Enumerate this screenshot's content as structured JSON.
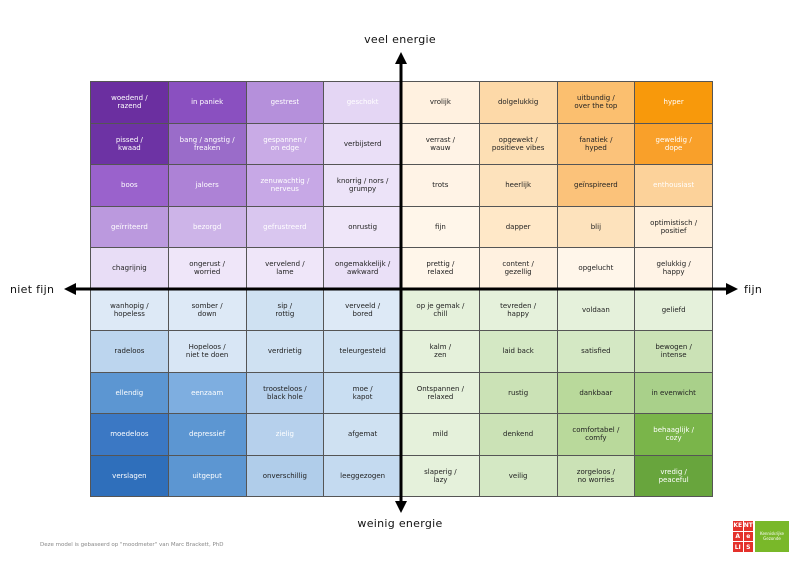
{
  "axes": {
    "top": "veel energie",
    "bottom": "weinig energie",
    "left": "niet fijn",
    "right": "fijn"
  },
  "grid": [
    [
      "woedend /\nrazend",
      "in paniek",
      "gestrest",
      "geschokt",
      "vrolijk",
      "dolgelukkig",
      "uitbundig /\nover the top",
      "hyper"
    ],
    [
      "pissed /\nkwaad",
      "bang / angstig /\nfreaken",
      "gespannen /\non edge",
      "verbijsterd",
      "verrast /\nwauw",
      "opgewekt /\npositieve vibes",
      "fanatiek /\nhyped",
      "geweldig /\ndope"
    ],
    [
      "boos",
      "jaloers",
      "zenuwachtig /\nnerveus",
      "knorrig / nors /\ngrumpy",
      "trots",
      "heerlijk",
      "geïnspireerd",
      "enthousiast"
    ],
    [
      "geïrriteerd",
      "bezorgd",
      "gefrustreerd",
      "onrustig",
      "fijn",
      "dapper",
      "blij",
      "optimistisch /\npositief"
    ],
    [
      "chagrijnig",
      "ongerust /\nworried",
      "vervelend /\nlame",
      "ongemakkelijk /\nawkward",
      "prettig /\nrelaxed",
      "content /\ngezellig",
      "opgelucht",
      "gelukkig /\nhappy"
    ],
    [
      "wanhopig /\nhopeless",
      "somber /\ndown",
      "sip /\nrottig",
      "verveeld /\nbored",
      "op je gemak /\nchill",
      "tevreden /\nhappy",
      "voldaan",
      "geliefd"
    ],
    [
      "radeloos",
      "Hopeloos /\nniet te doen",
      "verdrietig",
      "teleurgesteld",
      "kalm /\nzen",
      "laid back",
      "satisfied",
      "bewogen /\nintense"
    ],
    [
      "ellendig",
      "eenzaam",
      "troosteloos /\nblack hole",
      "moe /\nkapot",
      "Ontspannen /\nrelaxed",
      "rustig",
      "dankbaar",
      "in evenwicht"
    ],
    [
      "moedeloos",
      "depressief",
      "zielig",
      "afgemat",
      "mild",
      "denkend",
      "comfortabel /\ncomfy",
      "behaaglijk /\ncozy"
    ],
    [
      "verslagen",
      "uitgeput",
      "onverschillig",
      "leeggezogen",
      "slaperig /\nlazy",
      "veilig",
      "zorgeloos /\nno worries",
      "vredig /\npeaceful"
    ]
  ],
  "colors": [
    [
      "#6b2fa0",
      "#8a50c0",
      "#b590db",
      "#e4d6f4",
      "#fff1e0",
      "#fdd9a8",
      "#fbbf6f",
      "#f8990b"
    ],
    [
      "#6d33a4",
      "#9a6cc9",
      "#c9abe6",
      "#eadff7",
      "#fff3e6",
      "#fddfb4",
      "#fbc27a",
      "#f9a02a"
    ],
    [
      "#9a62cc",
      "#ad82d6",
      "#c7a8e6",
      "#ece3f8",
      "#fff3e6",
      "#fde2bc",
      "#fbc27a",
      "#fcd29a"
    ],
    [
      "#bb99de",
      "#cdb4e8",
      "#d9c6ef",
      "#efe6f9",
      "#fff6ea",
      "#ffe8c8",
      "#fde2bc",
      "#fff0dc"
    ],
    [
      "#e8ddf6",
      "#efe6f9",
      "#efe6f9",
      "#eae0f7",
      "#fff6ea",
      "#fff1e0",
      "#fff6ea",
      "#fff3e6"
    ],
    [
      "#dde9f6",
      "#dde9f6",
      "#cfe1f2",
      "#dde9f6",
      "#e5f1db",
      "#e5f1db",
      "#e5f1db",
      "#e5f1db"
    ],
    [
      "#bcd5ee",
      "#d8e6f5",
      "#cfe1f2",
      "#cfe1f2",
      "#e5f1db",
      "#d4e8c4",
      "#d4e8c4",
      "#cbe2b6"
    ],
    [
      "#5c96d2",
      "#7eaee0",
      "#b6d0ec",
      "#c9def2",
      "#e5f1db",
      "#cbe2b6",
      "#b9d99b",
      "#a9d08a"
    ],
    [
      "#3b78c4",
      "#5c96d2",
      "#b6d0ec",
      "#cfe1f2",
      "#e5f1db",
      "#cbe2b6",
      "#b9d99b",
      "#7ab54a"
    ],
    [
      "#2f6fbb",
      "#5c96d2",
      "#b0cdea",
      "#c4daf0",
      "#e5f1db",
      "#d4e8c4",
      "#cbe2b6",
      "#68a53d"
    ]
  ],
  "light_text": [
    [
      true,
      true,
      true,
      true,
      false,
      false,
      false,
      true
    ],
    [
      true,
      true,
      true,
      false,
      false,
      false,
      false,
      true
    ],
    [
      true,
      true,
      true,
      false,
      false,
      false,
      false,
      true
    ],
    [
      true,
      true,
      true,
      false,
      false,
      false,
      false,
      false
    ],
    [
      false,
      false,
      false,
      false,
      false,
      false,
      false,
      false
    ],
    [
      false,
      false,
      false,
      false,
      false,
      false,
      false,
      false
    ],
    [
      false,
      false,
      false,
      false,
      false,
      false,
      false,
      false
    ],
    [
      true,
      true,
      false,
      false,
      false,
      false,
      false,
      false
    ],
    [
      true,
      true,
      true,
      false,
      false,
      false,
      false,
      true
    ],
    [
      true,
      true,
      false,
      false,
      false,
      false,
      false,
      true
    ]
  ],
  "footer": "Deze model is gebaseerd op \"moodmeter\" van Marc Brackett, PhD",
  "logo": {
    "letters": [
      "KE",
      "NT",
      "A",
      "e",
      "LI",
      "S"
    ],
    "tagline": "Kenniskrijke\nGezonde",
    "red": "#e4312b",
    "green": "#79b829"
  }
}
